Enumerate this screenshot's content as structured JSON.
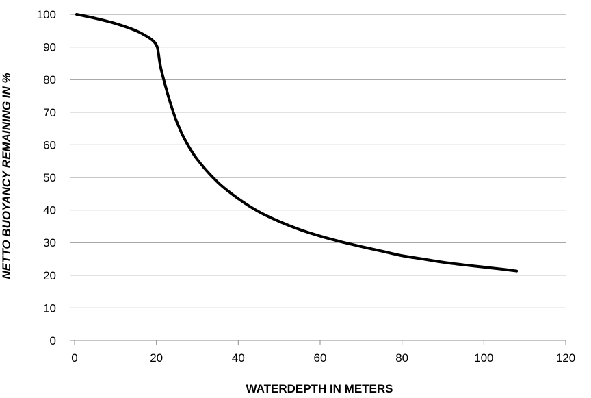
{
  "chart_data": {
    "type": "line",
    "title": "",
    "xlabel": "WATERDEPTH IN METERS",
    "ylabel": "NETTO BUOYANCY REMAINING IN %",
    "xlim": [
      0,
      120
    ],
    "ylim": [
      0,
      100
    ],
    "x_ticks": [
      "0",
      "20",
      "40",
      "60",
      "80",
      "100",
      "120"
    ],
    "y_ticks": [
      "0",
      "10",
      "20",
      "30",
      "40",
      "50",
      "60",
      "70",
      "80",
      "90",
      "100"
    ],
    "grid": "horizontal",
    "legend": "none",
    "line_color": "#000000",
    "series": [
      {
        "x": [
          0.5,
          5,
          10,
          15,
          18,
          19.5,
          20.2,
          20.5,
          21,
          22,
          23,
          24,
          25,
          27,
          30,
          35,
          40,
          45,
          50,
          55,
          60,
          65,
          70,
          75,
          80,
          85,
          90,
          95,
          100,
          105,
          108
        ],
        "values": [
          100,
          98.8,
          97.2,
          95.0,
          93.0,
          91.5,
          90.0,
          88.0,
          84.0,
          79.0,
          74.5,
          70.5,
          67.0,
          61.5,
          55.5,
          48.5,
          43.5,
          39.5,
          36.5,
          34.0,
          32.0,
          30.3,
          28.8,
          27.4,
          26.0,
          25.0,
          24.0,
          23.2,
          22.5,
          21.8,
          21.3
        ]
      }
    ]
  }
}
